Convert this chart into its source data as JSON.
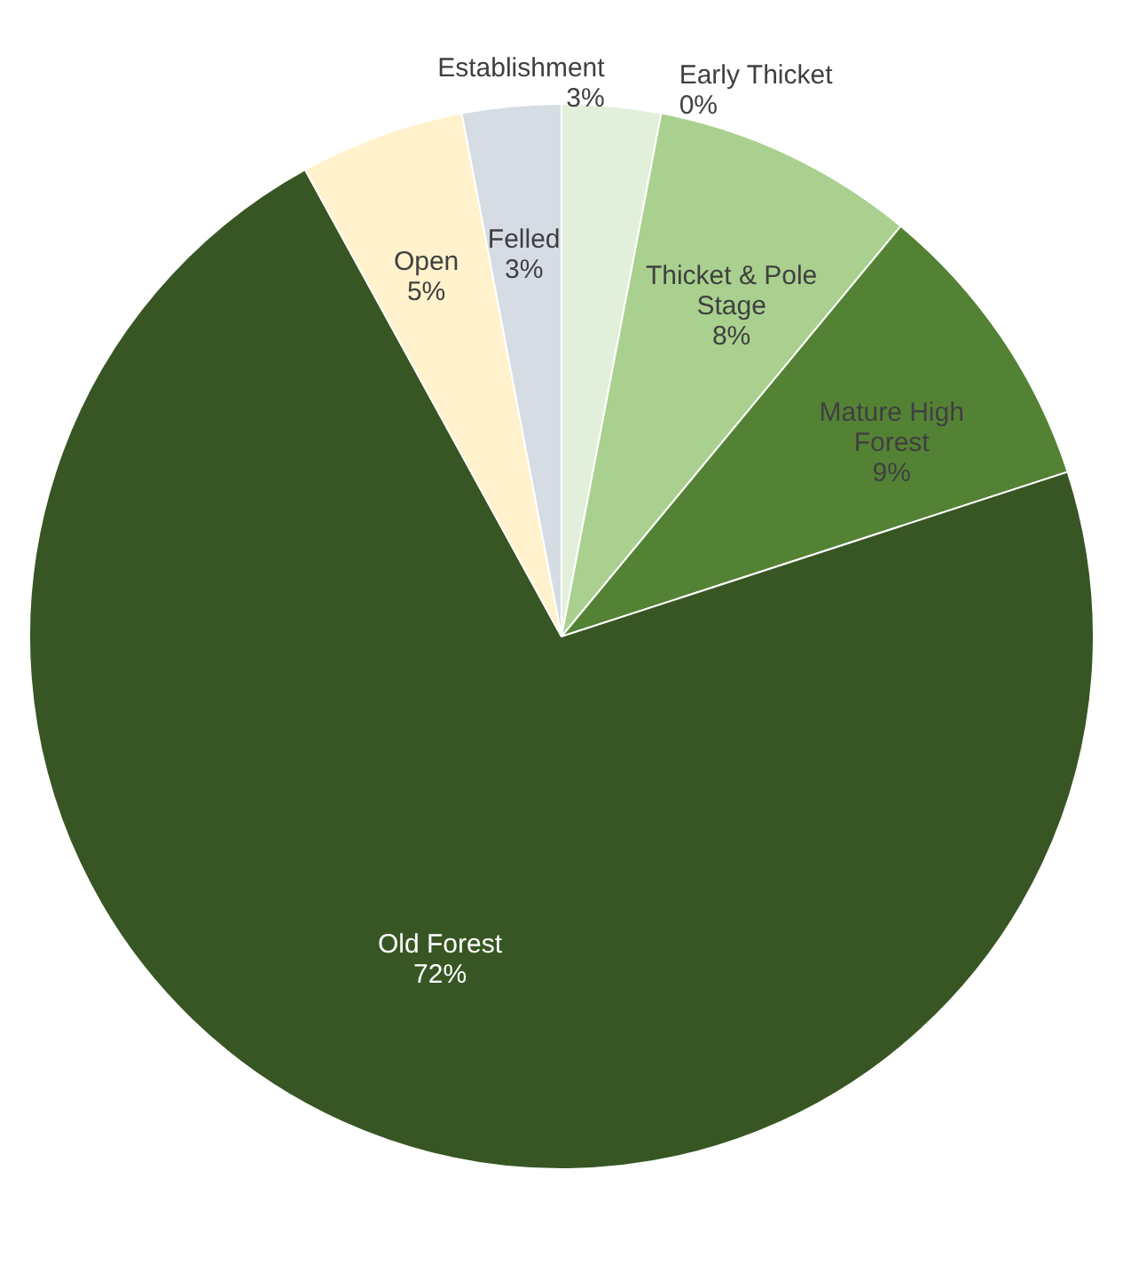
{
  "chart_data": {
    "type": "pie",
    "categories": [
      "Establishment",
      "Early Thicket",
      "Thicket & Pole Stage",
      "Mature High Forest",
      "Old Forest",
      "Open",
      "Felled"
    ],
    "values": [
      3,
      0,
      8,
      9,
      72,
      5,
      3
    ],
    "value_labels": [
      "3%",
      "0%",
      "8%",
      "9%",
      "72%",
      "5%",
      "3%"
    ],
    "colors": [
      "#e2efda",
      "#c6e0b4",
      "#a9d08e",
      "#548235",
      "#375623",
      "#fff2cc",
      "#d6dce4"
    ]
  }
}
